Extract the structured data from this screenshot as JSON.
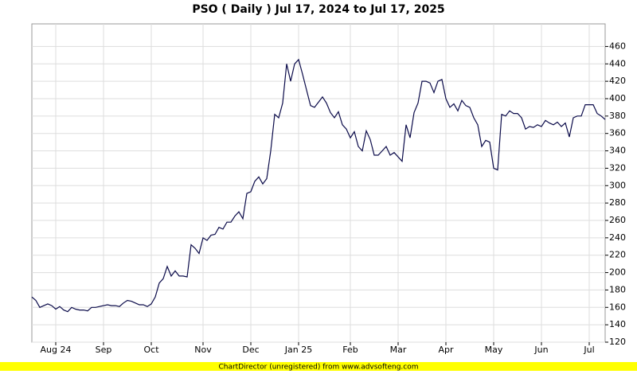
{
  "chart_data": {
    "type": "line",
    "title": "PSO ( Daily ) Jul 17, 2024 to Jul 17, 2025",
    "footer": "ChartDirector (unregistered) from www.advsofteng.com",
    "categories": [
      null,
      null,
      null,
      null,
      null,
      null,
      "Aug 24",
      null,
      null,
      null,
      null,
      null,
      null,
      null,
      null,
      null,
      null,
      null,
      "Sep",
      null,
      null,
      null,
      null,
      null,
      null,
      null,
      null,
      null,
      null,
      null,
      "Oct",
      null,
      null,
      null,
      null,
      null,
      null,
      null,
      null,
      null,
      null,
      null,
      null,
      "Nov",
      null,
      null,
      null,
      null,
      null,
      null,
      null,
      null,
      null,
      null,
      null,
      "Dec",
      null,
      null,
      null,
      null,
      null,
      null,
      null,
      null,
      null,
      null,
      null,
      "Jan 25",
      null,
      null,
      null,
      null,
      null,
      null,
      null,
      null,
      null,
      null,
      null,
      null,
      "Feb",
      null,
      null,
      null,
      null,
      null,
      null,
      null,
      null,
      null,
      null,
      null,
      "Mar",
      null,
      null,
      null,
      null,
      null,
      null,
      null,
      null,
      null,
      null,
      null,
      "Apr",
      null,
      null,
      null,
      null,
      null,
      null,
      null,
      null,
      null,
      null,
      null,
      "May",
      null,
      null,
      null,
      null,
      null,
      null,
      null,
      null,
      null,
      null,
      null,
      "Jun",
      null,
      null,
      null,
      null,
      null,
      null,
      null,
      null,
      null,
      null,
      null,
      "Jul",
      null,
      null,
      null,
      null
    ],
    "values": [
      172,
      168,
      160,
      162,
      164,
      162,
      158,
      161,
      157,
      155,
      160,
      158,
      157,
      157,
      156,
      160,
      160,
      161,
      162,
      163,
      162,
      162,
      161,
      165,
      168,
      167,
      165,
      163,
      163,
      161,
      164,
      172,
      188,
      193,
      207,
      196,
      202,
      196,
      196,
      195,
      232,
      228,
      222,
      240,
      237,
      243,
      244,
      252,
      250,
      258,
      258,
      265,
      270,
      262,
      291,
      293,
      305,
      310,
      302,
      308,
      340,
      382,
      378,
      395,
      440,
      420,
      440,
      445,
      428,
      410,
      392,
      390,
      396,
      402,
      395,
      384,
      378,
      385,
      370,
      365,
      355,
      362,
      345,
      340,
      363,
      353,
      335,
      335,
      340,
      345,
      335,
      338,
      333,
      328,
      370,
      355,
      384,
      395,
      420,
      420,
      418,
      407,
      420,
      422,
      400,
      390,
      394,
      386,
      398,
      392,
      390,
      378,
      370,
      345,
      352,
      350,
      320,
      318,
      382,
      380,
      386,
      383,
      383,
      378,
      365,
      368,
      367,
      370,
      368,
      375,
      372,
      370,
      373,
      368,
      372,
      356,
      378,
      380,
      380,
      393,
      393,
      393,
      383,
      380,
      376
    ],
    "color": "#0b0b4a",
    "ylim": [
      120,
      486
    ],
    "yticks": [
      120,
      140,
      160,
      180,
      200,
      220,
      240,
      260,
      280,
      300,
      320,
      340,
      360,
      380,
      400,
      420,
      440,
      460
    ],
    "grid": true
  }
}
